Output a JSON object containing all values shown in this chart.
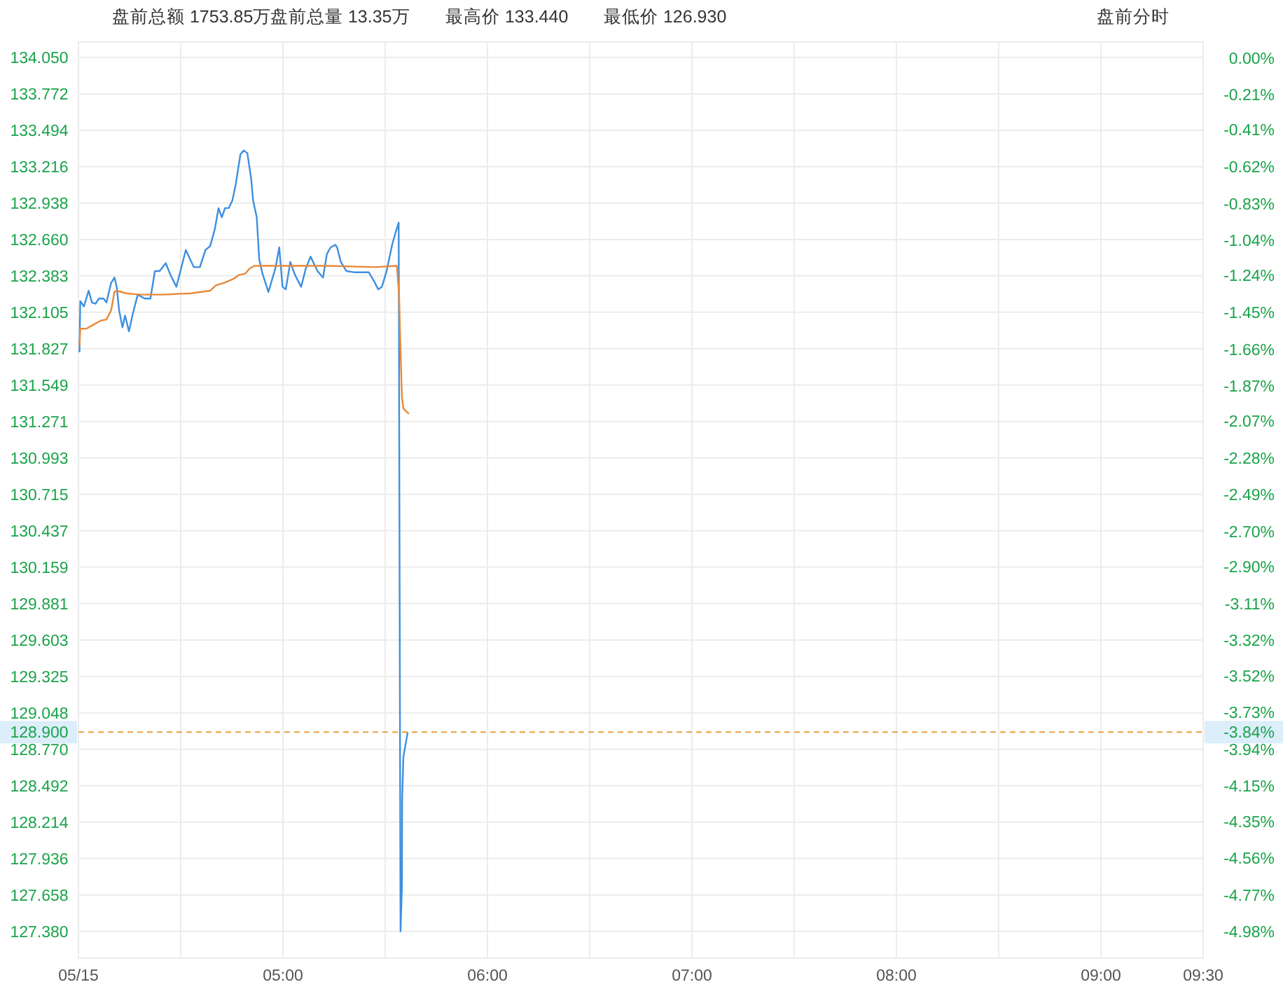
{
  "chart_data": {
    "type": "line",
    "annotations": [
      "盘前总额 1753.85万",
      "盘前总量 13.35万",
      "最高价 133.440",
      "最低价 126.930",
      "盘前分时",
      {
        "text": "-3.84%",
        "x": 9.5,
        "y": 128.9
      }
    ],
    "xlim": [
      4,
      9.5
    ],
    "xticks": [
      {
        "value": 4,
        "label": "05/15"
      },
      {
        "value": 4.5,
        "label": null
      },
      {
        "value": 5,
        "label": "05:00"
      },
      {
        "value": 5.5,
        "label": null
      },
      {
        "value": 6,
        "label": "06:00"
      },
      {
        "value": 6.5,
        "label": null
      },
      {
        "value": 7,
        "label": "07:00"
      },
      {
        "value": 7.5,
        "label": null
      },
      {
        "value": 8,
        "label": "08:00"
      },
      {
        "value": 8.5,
        "label": null
      },
      {
        "value": 9,
        "label": "09:00"
      },
      {
        "value": 9.5,
        "label": "09:30"
      }
    ],
    "ylim": [
      127.175,
      134.168
    ],
    "yticks": [
      {
        "value": 134.05,
        "label": "134.050"
      },
      {
        "value": 133.772,
        "label": "133.772"
      },
      {
        "value": 133.494,
        "label": "133.494"
      },
      {
        "value": 133.216,
        "label": "133.216"
      },
      {
        "value": 132.938,
        "label": "132.938"
      },
      {
        "value": 132.66,
        "label": "132.660"
      },
      {
        "value": 132.383,
        "label": "132.383"
      },
      {
        "value": 132.105,
        "label": "132.105"
      },
      {
        "value": 131.827,
        "label": "131.827"
      },
      {
        "value": 131.549,
        "label": "131.549"
      },
      {
        "value": 131.271,
        "label": "131.271"
      },
      {
        "value": 130.993,
        "label": "130.993"
      },
      {
        "value": 130.715,
        "label": "130.715"
      },
      {
        "value": 130.437,
        "label": "130.437"
      },
      {
        "value": 130.159,
        "label": "130.159"
      },
      {
        "value": 129.881,
        "label": "129.881"
      },
      {
        "value": 129.603,
        "label": "129.603"
      },
      {
        "value": 129.325,
        "label": "129.325"
      },
      {
        "value": 129.048,
        "label": "129.048"
      },
      {
        "value": 128.77,
        "label": "128.770"
      },
      {
        "value": 128.492,
        "label": "128.492"
      },
      {
        "value": 128.214,
        "label": "128.214"
      },
      {
        "value": 127.936,
        "label": "127.936"
      },
      {
        "value": 127.658,
        "label": "127.658"
      },
      {
        "value": 127.38,
        "label": "127.380"
      }
    ],
    "y2lim": [
      -5.13,
      0.09
    ],
    "y2ticks": [
      {
        "value": 0,
        "label": "0.00%"
      },
      {
        "value": -0.21,
        "label": "-0.21%"
      },
      {
        "value": -0.41,
        "label": "-0.41%"
      },
      {
        "value": -0.62,
        "label": "-0.62%"
      },
      {
        "value": -0.83,
        "label": "-0.83%"
      },
      {
        "value": -1.04,
        "label": "-1.04%"
      },
      {
        "value": -1.24,
        "label": "-1.24%"
      },
      {
        "value": -1.45,
        "label": "-1.45%"
      },
      {
        "value": -1.66,
        "label": "-1.66%"
      },
      {
        "value": -1.87,
        "label": "-1.87%"
      },
      {
        "value": -2.07,
        "label": "-2.07%"
      },
      {
        "value": -2.28,
        "label": "-2.28%"
      },
      {
        "value": -2.49,
        "label": "-2.49%"
      },
      {
        "value": -2.7,
        "label": "-2.70%"
      },
      {
        "value": -2.9,
        "label": "-2.90%"
      },
      {
        "value": -3.11,
        "label": "-3.11%"
      },
      {
        "value": -3.32,
        "label": "-3.32%"
      },
      {
        "value": -3.52,
        "label": "-3.52%"
      },
      {
        "value": -3.73,
        "label": "-3.73%"
      },
      {
        "value": -3.94,
        "label": "-3.94%"
      },
      {
        "value": -4.15,
        "label": "-4.15%"
      },
      {
        "value": -4.35,
        "label": "-4.35%"
      },
      {
        "value": -4.56,
        "label": "-4.56%"
      },
      {
        "value": -4.77,
        "label": "-4.77%"
      },
      {
        "value": -4.98,
        "label": "-4.98%"
      }
    ],
    "grid": true,
    "ref_lines": [
      {
        "axis": "y",
        "value": 128.9,
        "label": "128.900",
        "color": "#e8a040",
        "line_style": "dashed"
      }
    ],
    "series": [
      {
        "color": "#3d8fe0",
        "x": [
          4.005,
          4.009,
          4.027,
          4.05,
          4.066,
          4.084,
          4.1,
          4.123,
          4.137,
          4.16,
          4.176,
          4.187,
          4.199,
          4.215,
          4.228,
          4.247,
          4.267,
          4.29,
          4.324,
          4.352,
          4.374,
          4.397,
          4.427,
          4.45,
          4.479,
          4.502,
          4.525,
          4.564,
          4.594,
          4.621,
          4.644,
          4.667,
          4.685,
          4.701,
          4.717,
          4.735,
          4.753,
          4.769,
          4.792,
          4.808,
          4.826,
          4.845,
          4.854,
          4.872,
          4.884,
          4.9,
          4.929,
          4.963,
          4.982,
          4.998,
          5.014,
          5.036,
          5.059,
          5.089,
          5.112,
          5.135,
          5.169,
          5.196,
          5.215,
          5.233,
          5.256,
          5.265,
          5.283,
          5.31,
          5.352,
          5.42,
          5.443,
          5.466,
          5.484,
          5.507,
          5.534,
          5.552,
          5.566,
          5.575,
          5.582,
          5.583,
          5.589,
          5.61
        ],
        "values": [
          131.8,
          132.19,
          132.15,
          132.27,
          132.18,
          132.17,
          132.21,
          132.21,
          132.18,
          132.33,
          132.37,
          132.3,
          132.12,
          131.99,
          132.08,
          131.96,
          132.1,
          132.24,
          132.21,
          132.21,
          132.42,
          132.42,
          132.48,
          132.39,
          132.3,
          132.44,
          132.58,
          132.45,
          132.45,
          132.58,
          132.61,
          132.74,
          132.9,
          132.83,
          132.9,
          132.9,
          132.96,
          133.08,
          133.31,
          133.34,
          133.32,
          133.12,
          132.96,
          132.83,
          132.51,
          132.4,
          132.26,
          132.44,
          132.6,
          132.3,
          132.28,
          132.49,
          132.39,
          132.3,
          132.44,
          132.53,
          132.42,
          132.37,
          132.55,
          132.6,
          132.62,
          132.6,
          132.49,
          132.42,
          132.41,
          132.41,
          132.35,
          132.28,
          132.3,
          132.42,
          132.62,
          132.72,
          132.79,
          127.38,
          127.72,
          128.39,
          128.71,
          128.9
        ]
      },
      {
        "color": "#e8893a",
        "x": [
          4.005,
          4.009,
          4.039,
          4.073,
          4.107,
          4.137,
          4.16,
          4.176,
          4.187,
          4.233,
          4.301,
          4.416,
          4.552,
          4.644,
          4.671,
          4.712,
          4.758,
          4.785,
          4.815,
          4.838,
          4.861,
          4.986,
          5.215,
          5.454,
          5.557,
          5.568,
          5.575,
          5.582,
          5.589,
          5.616
        ],
        "values": [
          131.85,
          131.98,
          131.98,
          132.01,
          132.04,
          132.05,
          132.12,
          132.26,
          132.27,
          132.25,
          132.24,
          132.24,
          132.25,
          132.27,
          132.31,
          132.33,
          132.36,
          132.39,
          132.4,
          132.44,
          132.46,
          132.46,
          132.46,
          132.45,
          132.46,
          132.24,
          131.82,
          131.46,
          131.37,
          131.33
        ]
      }
    ]
  }
}
